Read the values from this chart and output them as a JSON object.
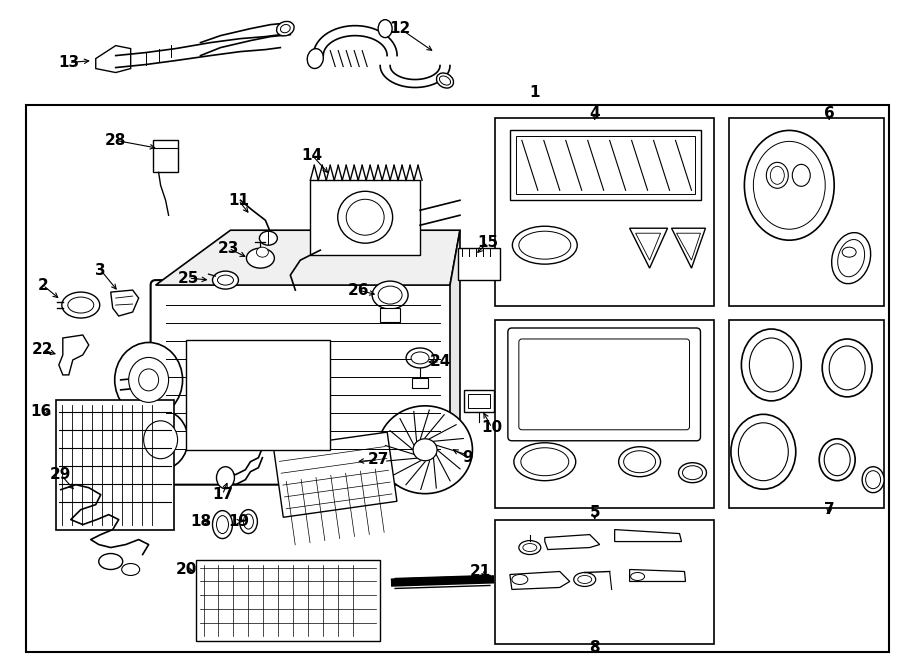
{
  "bg_color": "#ffffff",
  "line_color": "#000000",
  "text_color": "#000000",
  "fig_width": 9.0,
  "fig_height": 6.62,
  "dpi": 100
}
